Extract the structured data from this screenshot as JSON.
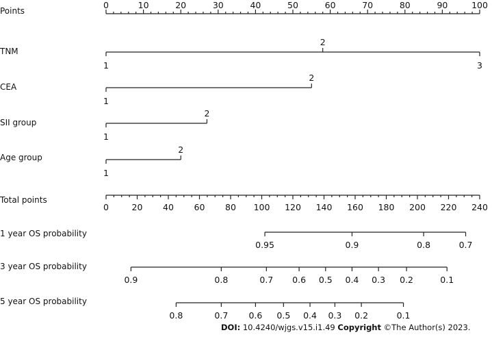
{
  "chart_data": {
    "type": "nomogram",
    "title": "",
    "rows": [
      {
        "name": "Points",
        "kind": "axis",
        "range": [
          0,
          100
        ],
        "major_ticks": [
          0,
          10,
          20,
          30,
          40,
          50,
          60,
          70,
          80,
          90,
          100
        ],
        "minor_step": 2
      },
      {
        "name": "TNM",
        "kind": "variable",
        "levels": [
          {
            "label": "1",
            "points": 0
          },
          {
            "label": "2",
            "points": 58
          },
          {
            "label": "3",
            "points": 100
          }
        ]
      },
      {
        "name": "CEA",
        "kind": "variable",
        "levels": [
          {
            "label": "1",
            "points": 0
          },
          {
            "label": "2",
            "points": 55
          }
        ]
      },
      {
        "name": "SII group",
        "kind": "variable",
        "levels": [
          {
            "label": "1",
            "points": 0
          },
          {
            "label": "2",
            "points": 27
          }
        ]
      },
      {
        "name": "Age group",
        "kind": "variable",
        "levels": [
          {
            "label": "1",
            "points": 0
          },
          {
            "label": "2",
            "points": 20
          }
        ]
      },
      {
        "name": "Total points",
        "kind": "axis",
        "range": [
          0,
          240
        ],
        "major_ticks": [
          0,
          20,
          40,
          60,
          80,
          100,
          120,
          140,
          160,
          180,
          200,
          220,
          240
        ],
        "minor_step": 5
      },
      {
        "name": "1 year OS probability",
        "kind": "outcome",
        "ticks": [
          {
            "label": "0.95",
            "total_points": 102
          },
          {
            "label": "0.9",
            "total_points": 158
          },
          {
            "label": "0.8",
            "total_points": 204
          },
          {
            "label": "0.7",
            "total_points": 231
          }
        ]
      },
      {
        "name": "3 year OS probability",
        "kind": "outcome",
        "ticks": [
          {
            "label": "0.9",
            "total_points": 16
          },
          {
            "label": "0.8",
            "total_points": 74
          },
          {
            "label": "0.7",
            "total_points": 103
          },
          {
            "label": "0.6",
            "total_points": 124
          },
          {
            "label": "0.5",
            "total_points": 141
          },
          {
            "label": "0.4",
            "total_points": 158
          },
          {
            "label": "0.3",
            "total_points": 175
          },
          {
            "label": "0.2",
            "total_points": 193
          },
          {
            "label": "0.1",
            "total_points": 219
          }
        ]
      },
      {
        "name": "5 year OS probability",
        "kind": "outcome",
        "ticks": [
          {
            "label": "0.8",
            "total_points": 45
          },
          {
            "label": "0.7",
            "total_points": 74
          },
          {
            "label": "0.6",
            "total_points": 96
          },
          {
            "label": "0.5",
            "total_points": 114
          },
          {
            "label": "0.4",
            "total_points": 131
          },
          {
            "label": "0.3",
            "total_points": 147
          },
          {
            "label": "0.2",
            "total_points": 164
          },
          {
            "label": "0.1",
            "total_points": 191
          }
        ]
      }
    ]
  },
  "footer": {
    "doi_label": "DOI:",
    "doi_value": " 10.4240/wjgs.v15.i1.49 ",
    "copyright_label": "Copyright",
    "copyright_value": " ©The Author(s) 2023."
  }
}
